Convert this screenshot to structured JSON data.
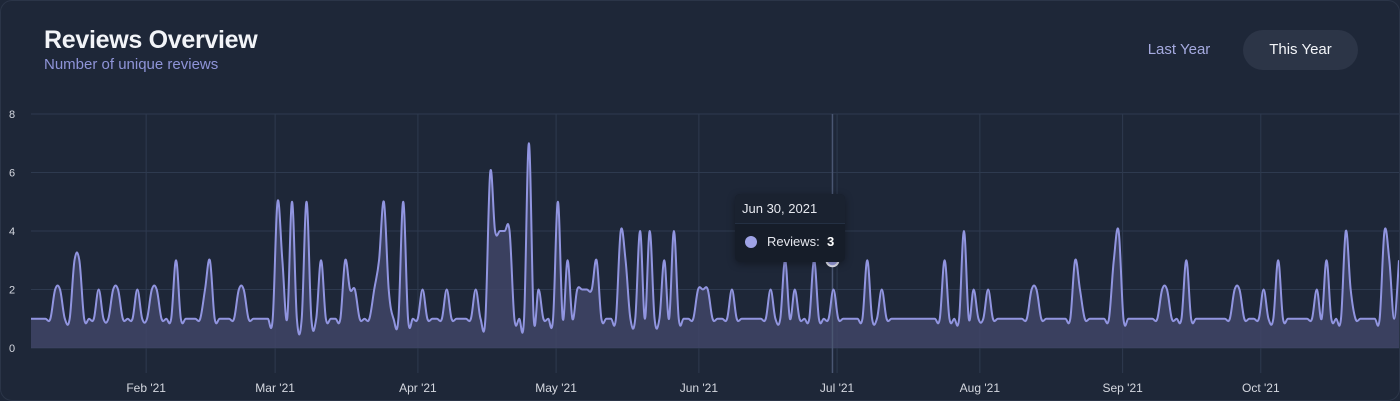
{
  "header": {
    "title": "Reviews Overview",
    "subtitle": "Number of unique reviews"
  },
  "tabs": [
    {
      "label": "Last Year",
      "active": false
    },
    {
      "label": "This Year",
      "active": true
    }
  ],
  "tooltip": {
    "date": "Jun 30, 2021",
    "series_label": "Reviews:",
    "value": "3"
  },
  "colors": {
    "background": "#1e2738",
    "line": "#9195e0",
    "area": "#3f4566",
    "grid": "#2e3a4f",
    "tab_active_bg": "#2c3547",
    "subtitle": "#8f94d8"
  },
  "chart_data": {
    "type": "area",
    "ylim": [
      0,
      8
    ],
    "y_ticks": [
      "0",
      "2",
      "4",
      "6",
      "8"
    ],
    "x_ticks": [
      {
        "label": "Feb '21",
        "date": "2021-02-01"
      },
      {
        "label": "Mar '21",
        "date": "2021-03-01"
      },
      {
        "label": "Apr '21",
        "date": "2021-04-01"
      },
      {
        "label": "May '21",
        "date": "2021-05-01"
      },
      {
        "label": "Jun '21",
        "date": "2021-06-01"
      },
      {
        "label": "Jul '21",
        "date": "2021-07-01"
      },
      {
        "label": "Aug '21",
        "date": "2021-08-01"
      },
      {
        "label": "Sep '21",
        "date": "2021-09-01"
      },
      {
        "label": "Oct '21",
        "date": "2021-10-01"
      }
    ],
    "x_start": "2021-01-07",
    "x_end": "2021-10-31",
    "highlight": {
      "date": "2021-06-30",
      "value": 3
    },
    "series": [
      {
        "values": [
          1,
          1,
          1,
          1,
          1,
          2,
          2,
          1,
          1,
          3,
          3,
          1,
          1,
          1,
          2,
          1,
          1,
          2,
          2,
          1,
          1,
          1,
          2,
          1,
          1,
          2,
          2,
          1,
          1,
          1,
          3,
          1,
          1,
          1,
          1,
          1,
          2,
          3,
          1,
          1,
          1,
          1,
          1,
          2,
          2,
          1,
          1,
          1,
          1,
          1,
          1,
          5,
          3,
          1,
          5,
          1,
          1,
          5,
          1,
          1,
          3,
          1,
          1,
          1,
          1,
          3,
          2,
          2,
          1,
          1,
          1,
          2,
          3,
          5,
          2,
          1,
          1,
          5,
          1,
          1,
          1,
          2,
          1,
          1,
          1,
          1,
          2,
          1,
          1,
          1,
          1,
          1,
          2,
          1,
          1,
          6,
          4,
          4,
          4,
          4,
          1,
          1,
          1,
          7,
          1,
          2,
          1,
          1,
          1,
          5,
          1,
          3,
          1,
          2,
          2,
          2,
          2,
          3,
          1,
          1,
          1,
          1,
          4,
          3,
          1,
          1,
          4,
          1,
          4,
          1,
          1,
          3,
          1,
          4,
          1,
          1,
          1,
          1,
          2,
          2,
          2,
          1,
          1,
          1,
          1,
          2,
          1,
          1,
          1,
          1,
          1,
          1,
          1,
          2,
          1,
          1,
          3,
          1,
          2,
          1,
          1,
          1,
          3,
          1,
          1,
          1,
          2,
          1,
          1,
          1,
          1,
          1,
          1,
          3,
          1,
          1,
          2,
          1,
          1,
          1,
          1,
          1,
          1,
          1,
          1,
          1,
          1,
          1,
          1,
          3,
          1,
          1,
          1,
          4,
          1,
          2,
          1,
          1,
          2,
          1,
          1,
          1,
          1,
          1,
          1,
          1,
          1,
          2,
          2,
          1,
          1,
          1,
          1,
          1,
          1,
          1,
          3,
          2,
          1,
          1,
          1,
          1,
          1,
          1,
          3,
          4,
          1,
          1,
          1,
          1,
          1,
          1,
          1,
          1,
          2,
          2,
          1,
          1,
          1,
          3,
          1,
          1,
          1,
          1,
          1,
          1,
          1,
          1,
          1,
          2,
          2,
          1,
          1,
          1,
          1,
          2,
          1,
          1,
          3,
          1,
          1,
          1,
          1,
          1,
          1,
          1,
          2,
          1,
          3,
          1,
          1,
          1,
          4,
          2,
          1,
          1,
          1,
          1,
          1,
          1,
          4,
          3,
          1,
          3
        ]
      }
    ]
  }
}
